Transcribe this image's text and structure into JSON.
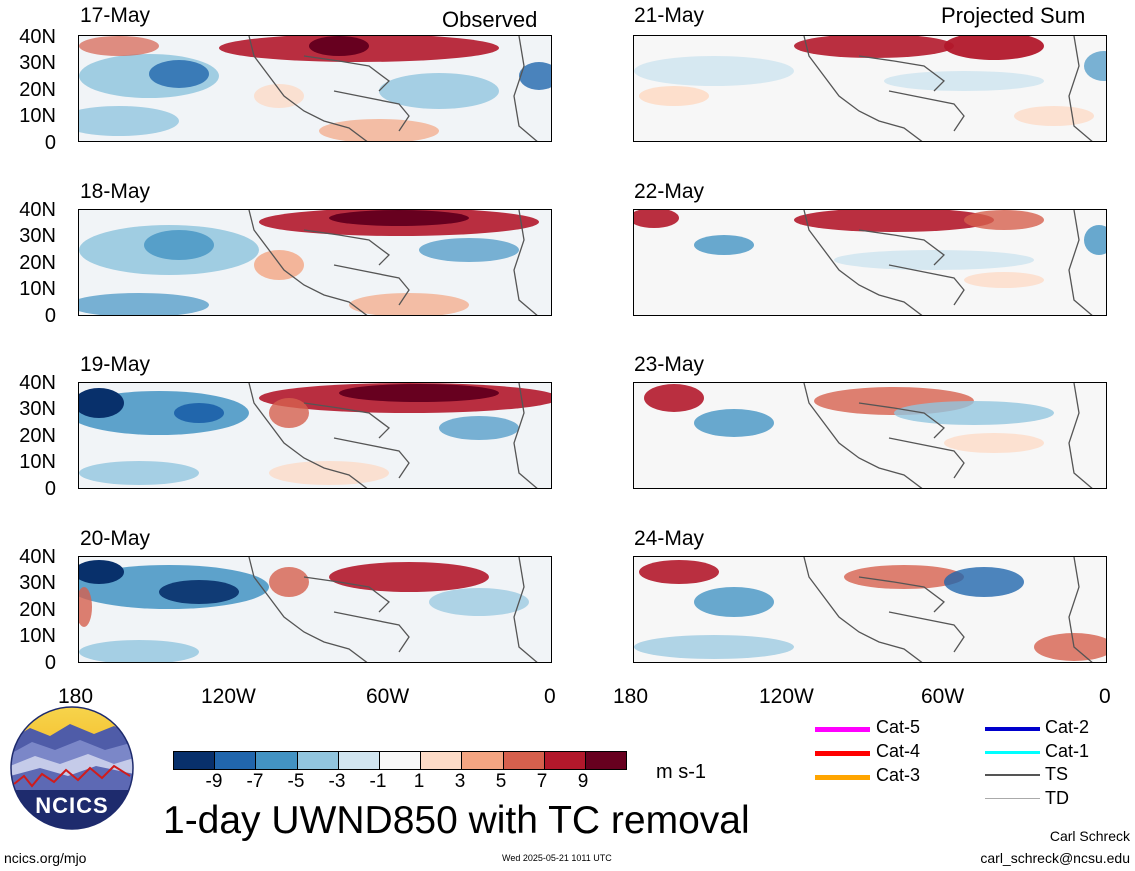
{
  "panels": {
    "observed_header": "Observed",
    "projected_header": "Projected Sum",
    "observed_dates": [
      "17-May",
      "18-May",
      "19-May",
      "20-May"
    ],
    "projected_dates": [
      "21-May",
      "22-May",
      "23-May",
      "24-May"
    ]
  },
  "axes": {
    "lat_labels": [
      "40N",
      "30N",
      "20N",
      "10N",
      "0"
    ],
    "lon_labels": [
      "180",
      "120W",
      "60W",
      "0"
    ]
  },
  "colorbar": {
    "labels": [
      "-9",
      "-7",
      "-5",
      "-3",
      "-1",
      "1",
      "3",
      "5",
      "7",
      "9"
    ],
    "units": "m s-1",
    "colors": [
      "#08306b",
      "#2166ac",
      "#4393c3",
      "#92c5de",
      "#d1e5f0",
      "#f7f7f7",
      "#fddbc7",
      "#f4a582",
      "#d6604d",
      "#b2182b",
      "#67001f"
    ]
  },
  "legend": {
    "items": [
      {
        "label": "Cat-5",
        "color": "#ff00ff"
      },
      {
        "label": "Cat-4",
        "color": "#ff0000"
      },
      {
        "label": "Cat-3",
        "color": "#ffa500"
      },
      {
        "label": "Cat-2",
        "color": "#0000cc"
      },
      {
        "label": "Cat-1",
        "color": "#00ffff"
      },
      {
        "label": "TS",
        "color": "#555555"
      },
      {
        "label": "TD",
        "color": "#aaaaaa"
      }
    ]
  },
  "title": "1-day UWND850 with TC removal",
  "logo": {
    "text": "NCICS"
  },
  "footer": {
    "website": "ncics.org/mjo",
    "timestamp": "Wed 2025-05-21 1011 UTC",
    "author": "Carl Schreck",
    "email": "carl_schreck@ncsu.edu"
  }
}
